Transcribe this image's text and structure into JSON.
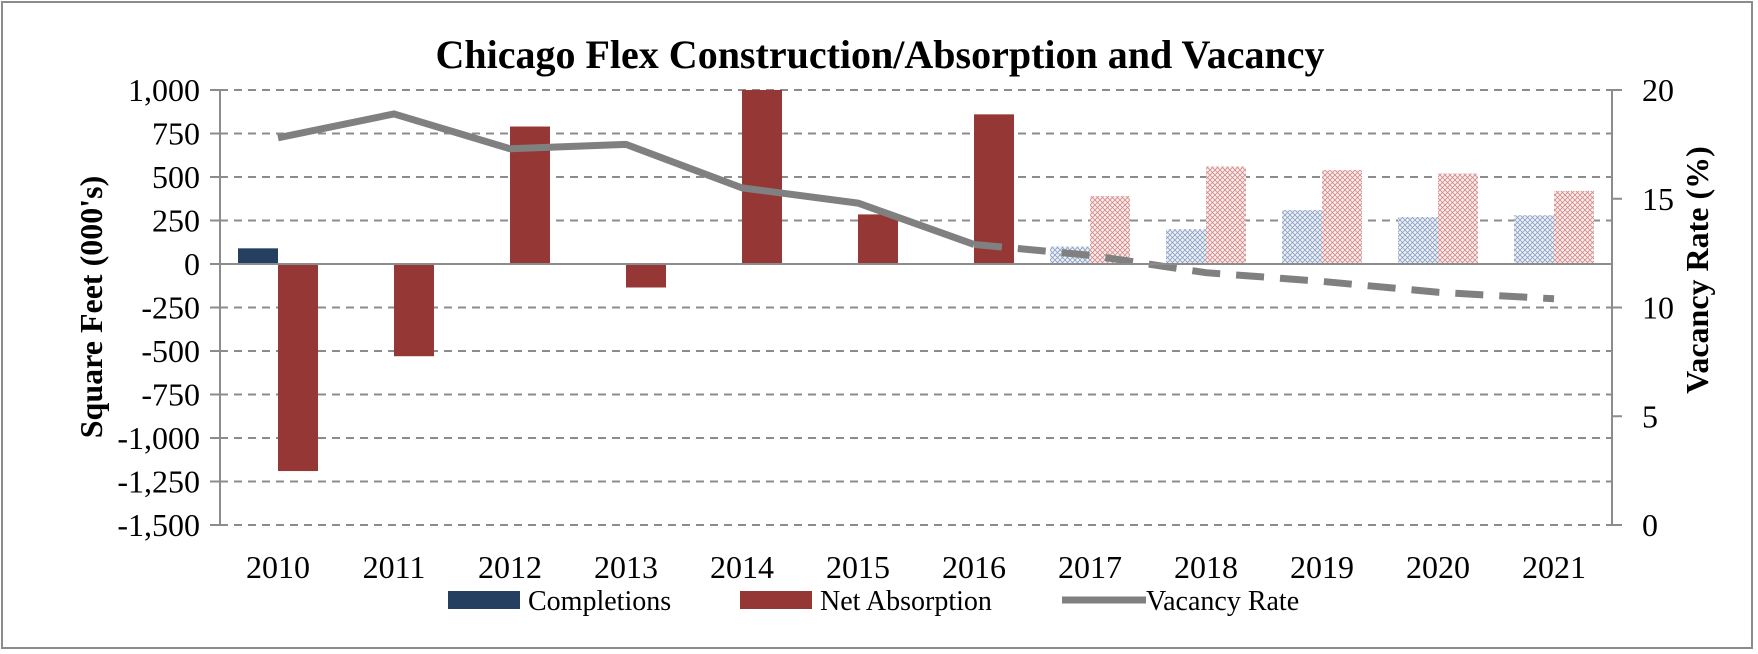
{
  "chart_data": {
    "type": "bar",
    "title": "Chicago Flex Construction/Absorption and Vacancy",
    "ylabel": "Square Feet (000's)",
    "y2label": "Vacancy Rate (%)",
    "xlabel": "",
    "ylim": [
      -1500,
      1000
    ],
    "y2lim": [
      0,
      20
    ],
    "yticks": [
      "1,000",
      "750",
      "500",
      "250",
      "0",
      "-250",
      "-500",
      "-750",
      "-1,000",
      "-1,250",
      "-1,500"
    ],
    "ytick_values": [
      1000,
      750,
      500,
      250,
      0,
      -250,
      -500,
      -750,
      -1000,
      -1250,
      -1500
    ],
    "y2ticks": [
      "20",
      "15",
      "10",
      "5",
      "0"
    ],
    "y2tick_values": [
      20,
      15,
      10,
      5,
      0
    ],
    "grid": true,
    "legend_position": "bottom",
    "categories": [
      "2010",
      "2011",
      "2012",
      "2013",
      "2014",
      "2015",
      "2016",
      "2017",
      "2018",
      "2019",
      "2020",
      "2021"
    ],
    "forecast_start_index": 7,
    "series": [
      {
        "name": "Completions",
        "kind": "bar",
        "color": "#243f60",
        "values": [
          90,
          0,
          0,
          0,
          0,
          0,
          0,
          100,
          200,
          310,
          270,
          280
        ]
      },
      {
        "name": "Net Absorption",
        "kind": "bar",
        "color": "#953735",
        "values": [
          -1190,
          -530,
          790,
          -135,
          1000,
          285,
          860,
          390,
          560,
          540,
          520,
          420
        ]
      },
      {
        "name": "Vacancy Rate",
        "kind": "line",
        "axis": "right",
        "color": "#808080",
        "values": [
          17.8,
          18.9,
          17.3,
          17.5,
          15.5,
          14.8,
          12.9,
          12.4,
          11.6,
          11.2,
          10.7,
          10.4
        ]
      }
    ]
  }
}
